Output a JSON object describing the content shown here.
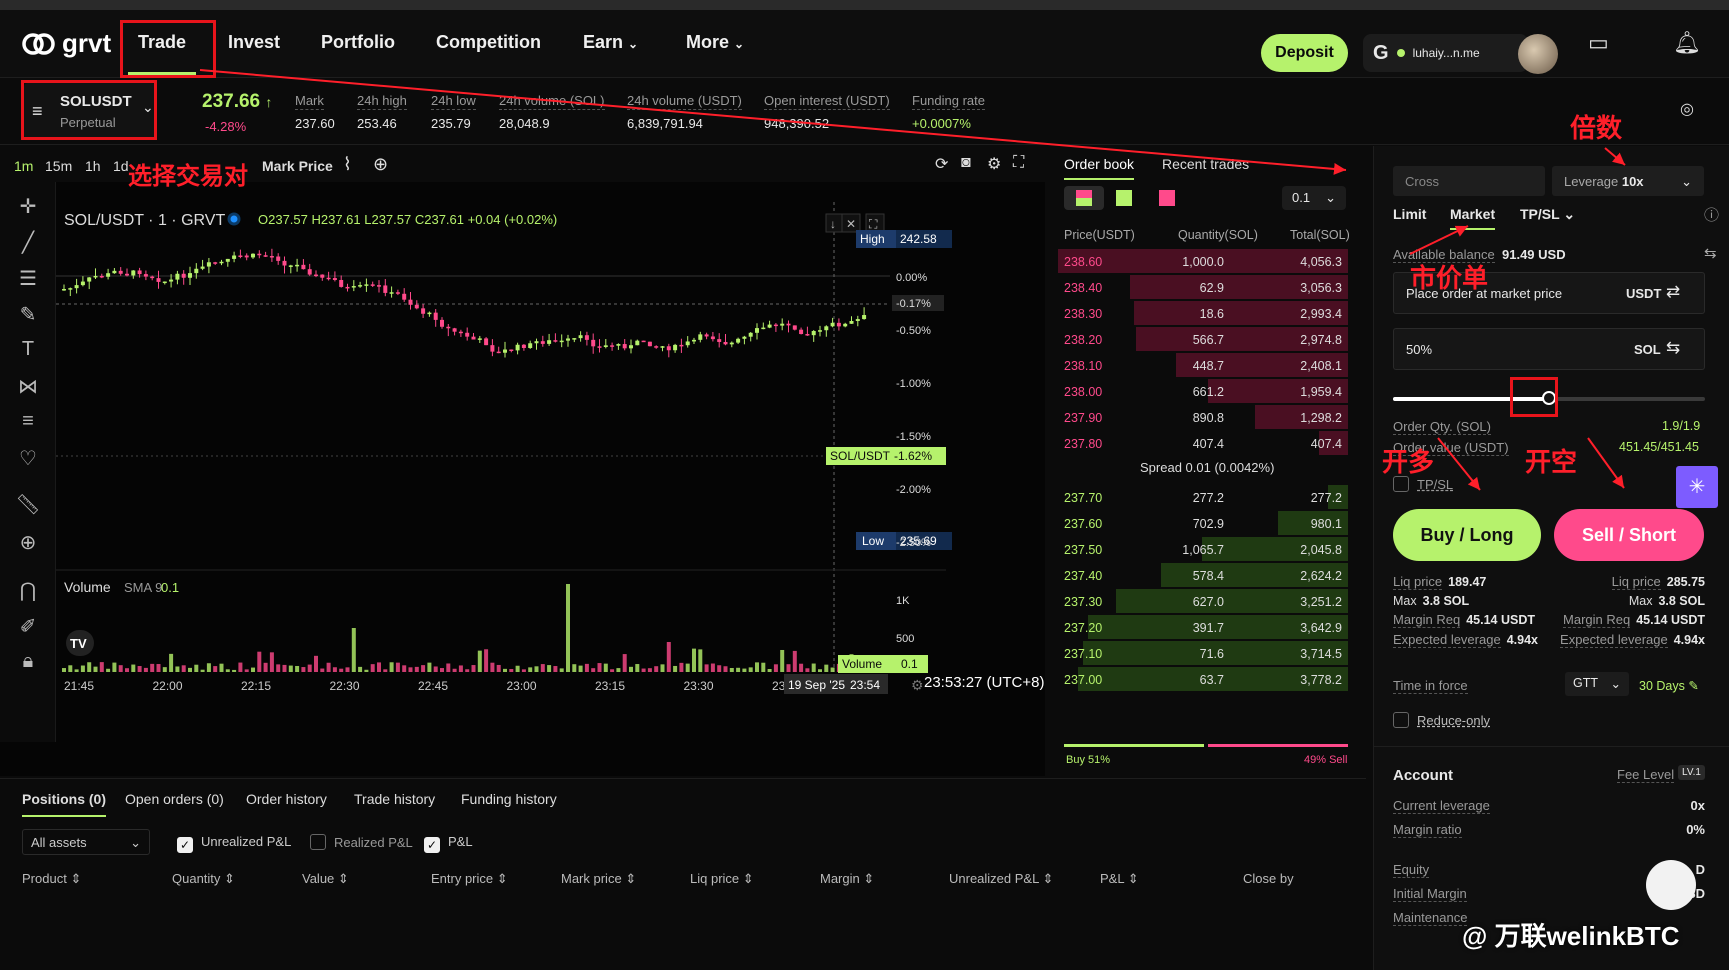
{
  "nav": {
    "logo": "grvt",
    "items": [
      "Trade",
      "Invest",
      "Portfolio",
      "Competition",
      "Earn",
      "More"
    ],
    "deposit": "Deposit",
    "user": "luhaiy...n.me"
  },
  "ticker": {
    "symbol": "SOLUSDT",
    "sub": "Perpetual",
    "price": "237.66",
    "arrow": "↑",
    "change": "-4.28%",
    "stats": [
      {
        "label": "Mark",
        "value": "237.60"
      },
      {
        "label": "24h high",
        "value": "253.46"
      },
      {
        "label": "24h low",
        "value": "235.79"
      },
      {
        "label": "24h volume (SOL)",
        "value": "28,048.9"
      },
      {
        "label": "24h volume (USDT)",
        "value": "6,839,791.94"
      },
      {
        "label": "Open interest (USDT)",
        "value": "948,390.52"
      },
      {
        "label": "Funding rate",
        "value": "+0.0007%"
      }
    ]
  },
  "chart": {
    "timeframes": [
      "1m",
      "15m",
      "1h",
      "1d"
    ],
    "markprice": "Mark Price",
    "pair_title": "SOL/USDT · 1 · GRVT",
    "ohlc": "O237.57  H237.61  L237.57  C237.61  +0.04 (+0.02%)",
    "high_label": "High",
    "high_value": "242.58",
    "low_label": "Low",
    "low_value": "235.69",
    "pct_ticks": [
      "0.00%",
      "-0.50%",
      "-1.00%",
      "-1.50%",
      "-2.00%",
      "-2.50%"
    ],
    "cur_pct": "-0.17%",
    "tag_pair": "SOL/USDT",
    "tag_pct": "-1.62%",
    "volume_label": "Volume",
    "sma": "SMA 9",
    "sma_val": "0.1",
    "vol_ticks": [
      "1K",
      "500"
    ],
    "vol_tag": "Volume",
    "vol_tag_val": "0.1",
    "time_ticks": [
      "21:45",
      "22:00",
      "22:15",
      "22:30",
      "22:45",
      "23:00",
      "23:15",
      "23:30",
      "23"
    ],
    "cursor_date": "19 Sep '25",
    "cursor_time": "23:54",
    "clock": "23:53:27 (UTC+8)"
  },
  "orderbook": {
    "tabs": [
      "Order book",
      "Recent trades"
    ],
    "step": "0.1",
    "headers": [
      "Price(USDT)",
      "Quantity(SOL)",
      "Total(SOL)"
    ],
    "asks": [
      [
        "238.60",
        "1,000.0",
        "4,056.3"
      ],
      [
        "238.40",
        "62.9",
        "3,056.3"
      ],
      [
        "238.30",
        "18.6",
        "2,993.4"
      ],
      [
        "238.20",
        "566.7",
        "2,974.8"
      ],
      [
        "238.10",
        "448.7",
        "2,408.1"
      ],
      [
        "238.00",
        "661.2",
        "1,959.4"
      ],
      [
        "237.90",
        "890.8",
        "1,298.2"
      ],
      [
        "237.80",
        "407.4",
        "407.4"
      ]
    ],
    "spread": "Spread  0.01 (0.0042%)",
    "bids": [
      [
        "237.70",
        "277.2",
        "277.2"
      ],
      [
        "237.60",
        "702.9",
        "980.1"
      ],
      [
        "237.50",
        "1,065.7",
        "2,045.8"
      ],
      [
        "237.40",
        "578.4",
        "2,624.2"
      ],
      [
        "237.30",
        "627.0",
        "3,251.2"
      ],
      [
        "237.20",
        "391.7",
        "3,642.9"
      ],
      [
        "237.10",
        "71.6",
        "3,714.5"
      ],
      [
        "237.00",
        "63.7",
        "3,778.2"
      ]
    ],
    "buy_pct": "Buy 51%",
    "sell_pct": "49% Sell"
  },
  "form": {
    "margin_mode": "Cross",
    "leverage_label": "Leverage",
    "leverage": "10x",
    "order_types": [
      "Limit",
      "Market",
      "TP/SL"
    ],
    "balance_label": "Available balance",
    "balance": "91.49 USD",
    "market_placeholder": "Place order at market price",
    "unit_usdt": "USDT",
    "pct": "50%",
    "unit_sol": "SOL",
    "qty_label": "Order Qty. (SOL)",
    "qty_value": "1.9/1.9",
    "val_label": "Order value (USDT)",
    "val_value": "451.45/451.45",
    "tpsl": "TP/SL",
    "buy": "Buy / Long",
    "sell": "Sell / Short",
    "buy_info": [
      [
        "Liq price",
        "189.47"
      ],
      [
        "Max",
        "3.8 SOL"
      ],
      [
        "Margin Req",
        "45.14 USDT"
      ],
      [
        "Expected leverage",
        "4.94x"
      ]
    ],
    "sell_info": [
      [
        "Liq price",
        "285.75"
      ],
      [
        "Max",
        "3.8 SOL"
      ],
      [
        "Margin Req",
        "45.14 USDT"
      ],
      [
        "Expected leverage",
        "4.94x"
      ]
    ],
    "tif_label": "Time in force",
    "tif": "GTT",
    "days": "30 Days",
    "reduce": "Reduce-only",
    "account": "Account",
    "fee_level": "Fee Level",
    "fee_badge": "LV.1",
    "acct_rows": [
      [
        "Current leverage",
        "0x"
      ],
      [
        "Margin ratio",
        "0%"
      ],
      [
        "Equity",
        "D"
      ],
      [
        "Initial Margin",
        "SD"
      ],
      [
        "Maintenance",
        ""
      ]
    ]
  },
  "bottom": {
    "tabs": [
      "Positions (0)",
      "Open orders (0)",
      "Order history",
      "Trade history",
      "Funding history"
    ],
    "assets": "All assets",
    "checks": [
      "Unrealized P&L",
      "Realized P&L",
      "P&L"
    ],
    "cols": [
      "Product",
      "Quantity",
      "Value",
      "Entry price",
      "Mark price",
      "Liq price",
      "Margin",
      "Unrealized P&L",
      "P&L",
      "Close by"
    ]
  },
  "annotations": {
    "pair": "选择交易对",
    "leverage": "倍数",
    "market": "市价单",
    "long": "开多",
    "short": "开空"
  },
  "watermark": "@ 万联welinkBTC",
  "colors": {
    "accent": "#b6f26c",
    "sell": "#ff4a8b",
    "annot": "#ff1f2a"
  }
}
